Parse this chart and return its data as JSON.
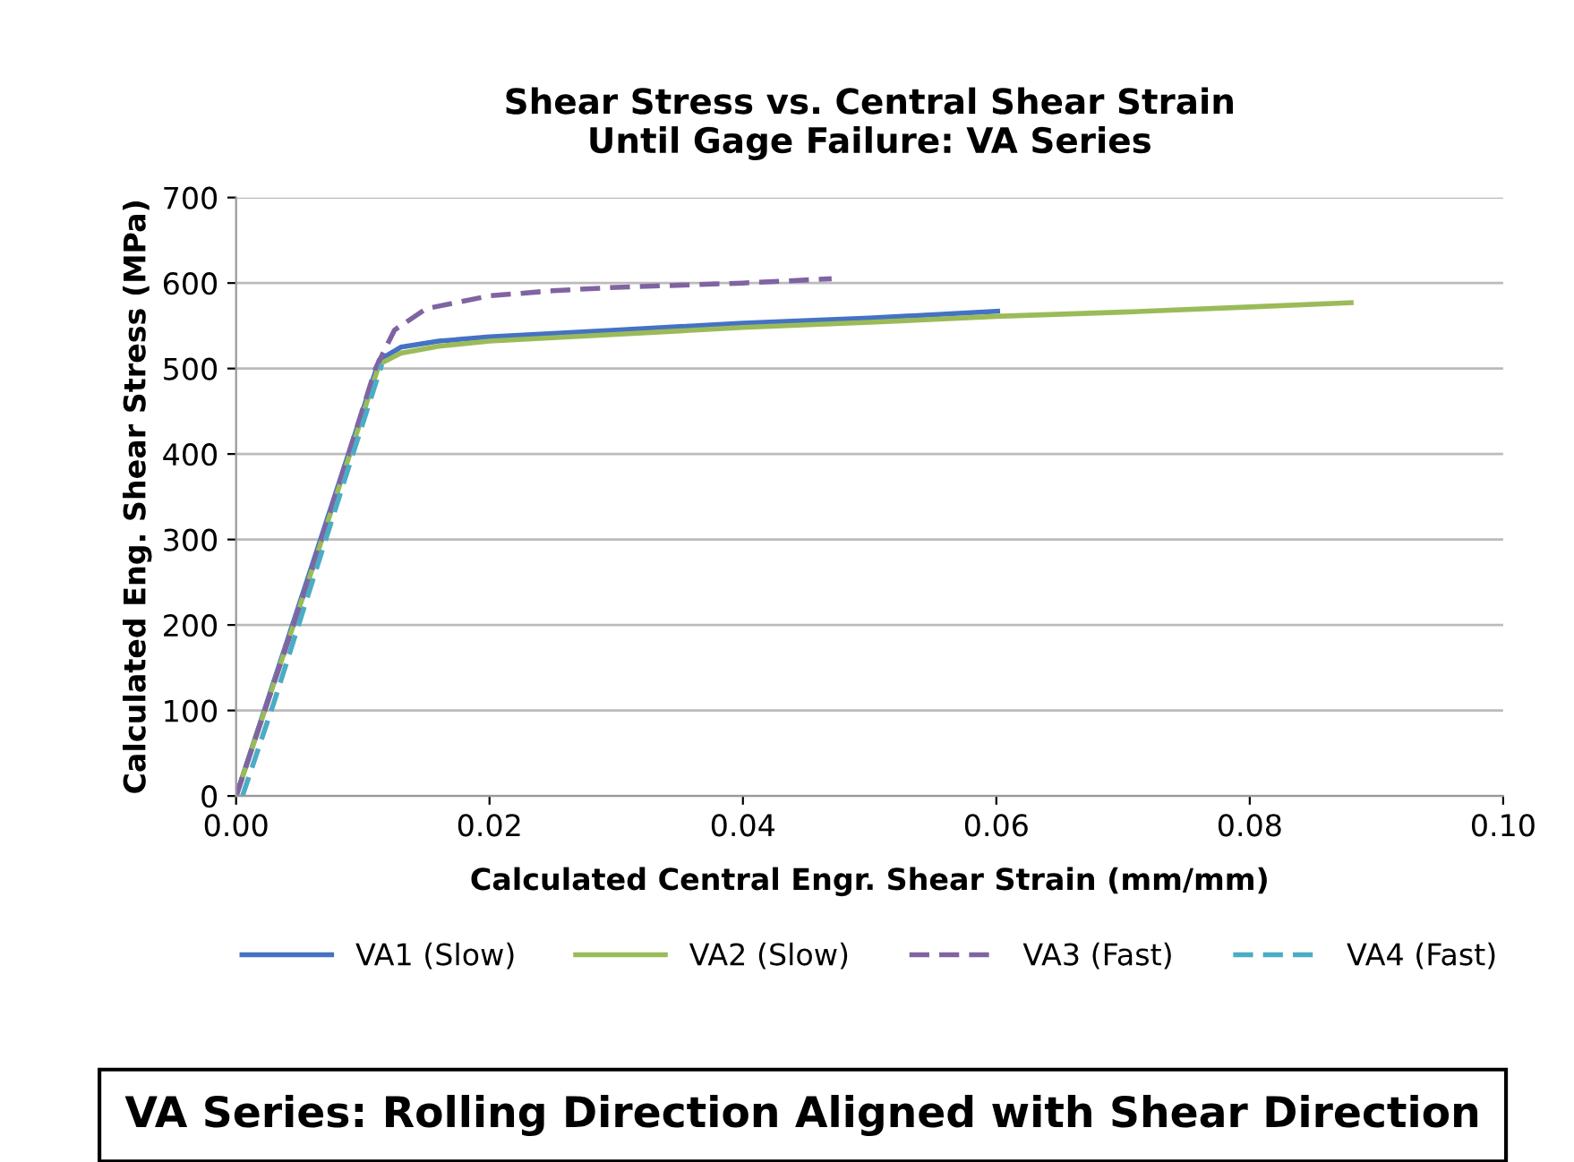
{
  "chart_data": {
    "type": "line",
    "title": "Shear Stress vs. Central Shear Strain\nUntil Gage Failure: VA Series",
    "xlabel": "Calculated Central Engr. Shear Strain (mm/mm)",
    "ylabel": "Calculated Eng. Shear Stress (MPa)",
    "xlim": [
      0,
      0.1
    ],
    "xticks": [
      {
        "value": 0,
        "label": "0.00"
      },
      {
        "value": 0.02,
        "label": "0.02"
      },
      {
        "value": 0.04,
        "label": "0.04"
      },
      {
        "value": 0.06,
        "label": "0.06"
      },
      {
        "value": 0.08,
        "label": "0.08"
      },
      {
        "value": 0.1,
        "label": "0.10"
      }
    ],
    "ylim": [
      0,
      700
    ],
    "yticks": [
      0,
      100,
      200,
      300,
      400,
      500,
      600,
      700
    ],
    "grid": "y",
    "legend": "bottom",
    "series": [
      {
        "name": "VA1 (Slow)",
        "color": "#4472c4",
        "line_style": "solid",
        "x": [
          0,
          0.006,
          0.0113,
          0.013,
          0.016,
          0.02,
          0.03,
          0.04,
          0.05,
          0.0601
        ],
        "values": [
          0,
          270,
          510,
          525,
          532,
          537,
          545,
          553,
          559,
          567
        ]
      },
      {
        "name": "VA2 (Slow)",
        "color": "#9bbb59",
        "line_style": "solid",
        "x": [
          0,
          0.006,
          0.0113,
          0.013,
          0.016,
          0.02,
          0.03,
          0.04,
          0.05,
          0.06,
          0.07,
          0.08,
          0.088
        ],
        "values": [
          0,
          265,
          505,
          518,
          526,
          532,
          540,
          548,
          554,
          561,
          566,
          572,
          577
        ]
      },
      {
        "name": "VA3 (Fast)",
        "color": "#8064a2",
        "line_style": "dashed",
        "x": [
          0,
          0.006,
          0.011,
          0.0125,
          0.015,
          0.02,
          0.025,
          0.03,
          0.04,
          0.047
        ],
        "values": [
          0,
          265,
          500,
          545,
          570,
          585,
          591,
          595,
          600,
          605
        ]
      },
      {
        "name": "VA4 (Fast)",
        "color": "#4bacc6",
        "line_style": "dashed",
        "x": [
          0.0005,
          0.003,
          0.006,
          0.009,
          0.0115
        ],
        "values": [
          0,
          110,
          250,
          390,
          505
        ]
      }
    ],
    "annotations": [
      "VA Series: Rolling Direction Aligned with Shear Direction"
    ]
  }
}
